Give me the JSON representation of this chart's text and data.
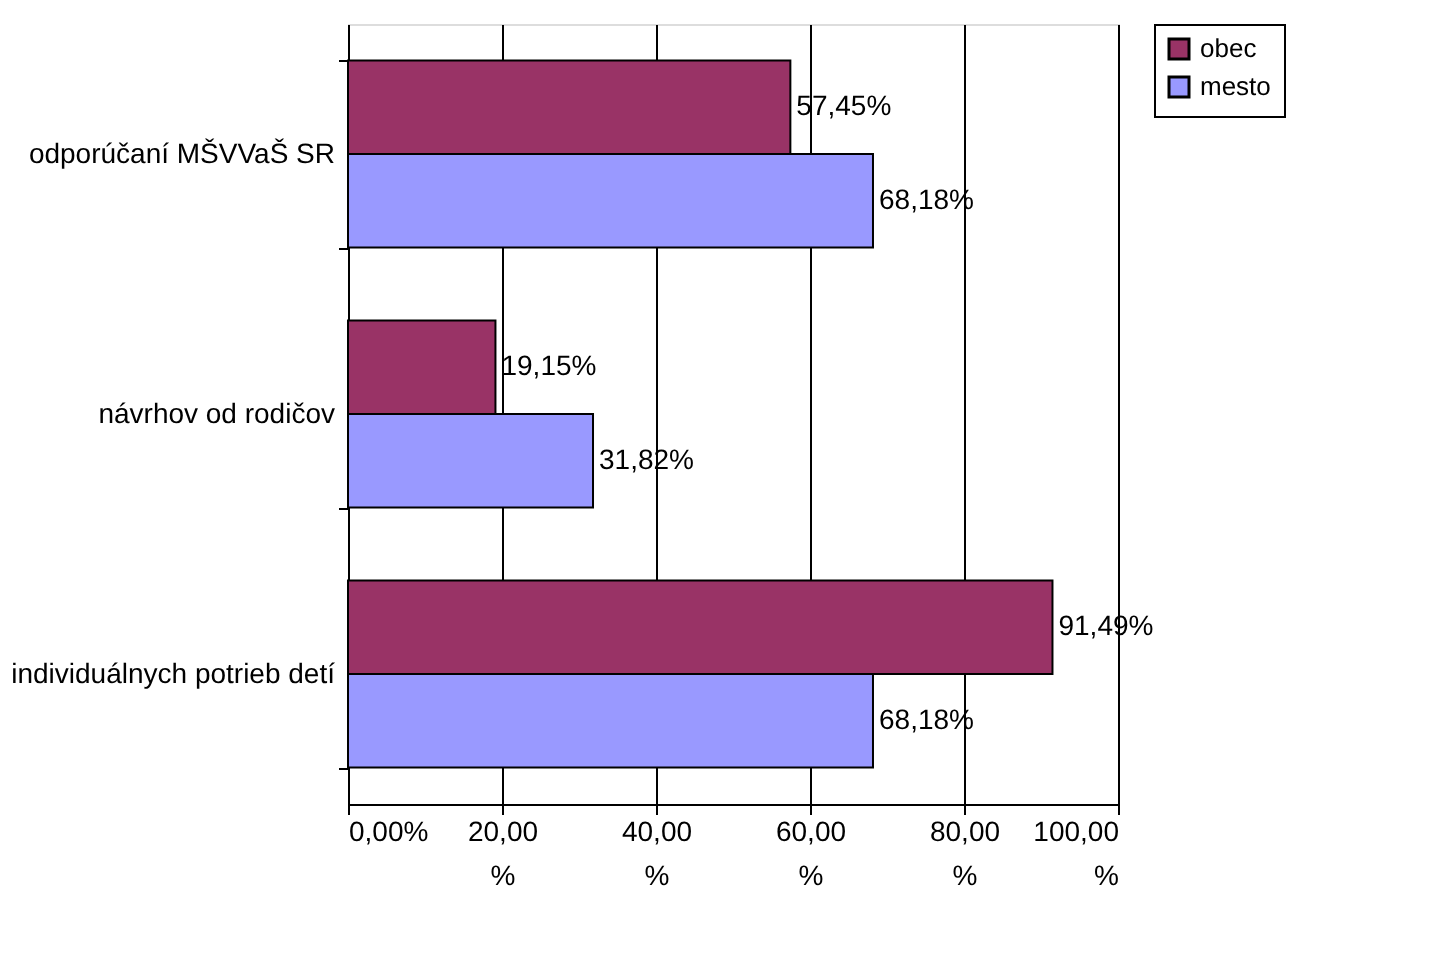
{
  "chart_data": {
    "type": "bar",
    "orientation": "horizontal",
    "categories": [
      "odporúčaní MŠVVaŠ SR",
      "návrhov od rodičov",
      "individuálnych potrieb detí"
    ],
    "series": [
      {
        "name": "obec",
        "color": "#993366",
        "values": [
          57.45,
          19.15,
          91.49
        ],
        "value_labels": [
          "57,45%",
          "19,15%",
          "91,49%"
        ]
      },
      {
        "name": "mesto",
        "color": "#9999ff",
        "values": [
          68.18,
          31.82,
          68.18
        ],
        "value_labels": [
          "68,18%",
          "31,82%",
          "68,18%"
        ]
      }
    ],
    "xlim": [
      0,
      100
    ],
    "xticks": [
      {
        "value": 0,
        "label": "0,00%"
      },
      {
        "value": 20,
        "label": "20,00 %"
      },
      {
        "value": 40,
        "label": "40,00 %"
      },
      {
        "value": 60,
        "label": "60,00 %"
      },
      {
        "value": 80,
        "label": "80,00 %"
      },
      {
        "value": 100,
        "label": "100,00 %"
      }
    ],
    "grid": "x",
    "legend": "right"
  }
}
